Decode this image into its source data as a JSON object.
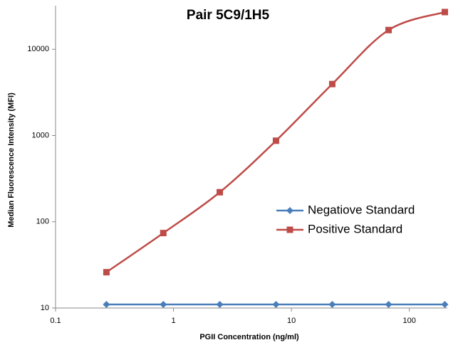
{
  "chart_data": {
    "type": "line",
    "title": "Pair 5C9/1H5",
    "x_label": "PGII Concentration (ng/ml)",
    "y_label": "Median Fluorescence Intensity (MFI)",
    "x": [
      0.27,
      0.82,
      2.47,
      7.4,
      22.2,
      66.7,
      200
    ],
    "series": [
      {
        "name": "Negatiove Standard",
        "color": "#4a7ebb",
        "marker": "diamond",
        "values": [
          11,
          11,
          11,
          11,
          11,
          11,
          11
        ]
      },
      {
        "name": "Positive Standard",
        "color": "#be4b48",
        "marker": "square",
        "values": [
          26,
          74,
          220,
          870,
          3950,
          16700,
          27000
        ]
      }
    ],
    "xlim": [
      0.1,
      210
    ],
    "ylim": [
      10,
      32000
    ],
    "xticks": [
      0.1,
      1,
      10,
      100
    ],
    "yticks": [
      10,
      100,
      1000,
      10000
    ],
    "xlog": true,
    "ylog": true,
    "smooth": true,
    "grid": false,
    "legend": "right"
  }
}
